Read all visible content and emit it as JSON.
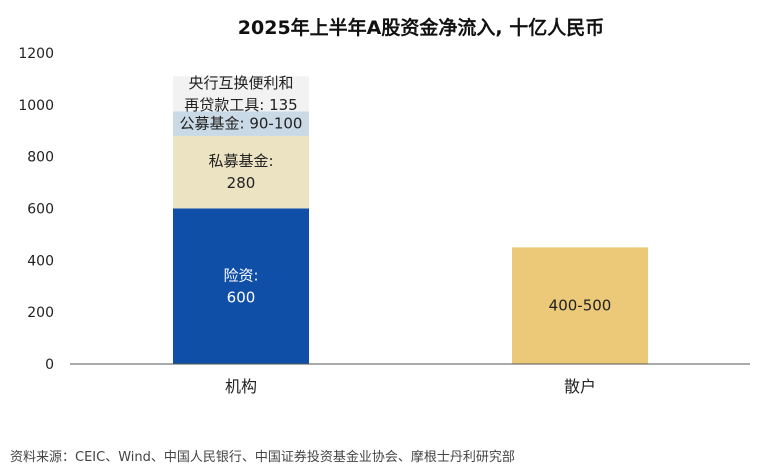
{
  "chart_data": {
    "type": "bar",
    "stacked": true,
    "title": "2025年上半年A股资金净流入, 十亿人民币",
    "categories": [
      "机构",
      "散户"
    ],
    "ylim": [
      0,
      1200
    ],
    "yticks": [
      0,
      200,
      400,
      600,
      800,
      1000,
      1200
    ],
    "grid": false,
    "series": [
      {
        "category": "机构",
        "segments": [
          {
            "label_lines": [
              "险资:",
              "600"
            ],
            "value": 600,
            "color": "#0f4fa8",
            "text_color": "#ffffff"
          },
          {
            "label_lines": [
              "私募基金:",
              "280"
            ],
            "value": 280,
            "color": "#ece3c3",
            "text_color": "#222222"
          },
          {
            "label_lines": [
              "公募基金: 90-100"
            ],
            "value": 95,
            "color": "#c9d9e6",
            "text_color": "#222222"
          },
          {
            "label_lines": [
              "央行互换便利和",
              "再贷款工具: 135"
            ],
            "value": 135,
            "color": "#f2f2f2",
            "text_color": "#222222"
          }
        ]
      },
      {
        "category": "散户",
        "segments": [
          {
            "label_lines": [
              "400-500"
            ],
            "value": 450,
            "color": "#ebc978",
            "text_color": "#222222"
          }
        ]
      }
    ]
  },
  "source": "资料来源：CEIC、Wind、中国人民银行、中国证券投资基金业协会、摩根士丹利研究部"
}
